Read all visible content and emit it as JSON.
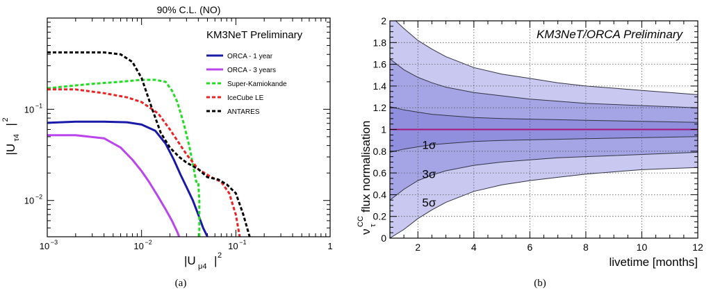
{
  "chart_data": [
    {
      "type": "line",
      "title": "90% C.L. (NO)",
      "xlabel": "|U",
      "xlabel_sub": "μ4",
      "xlabel_sup": "2",
      "ylabel": "|U",
      "ylabel_sub": "τ4",
      "ylabel_sup": "2",
      "xscale": "log",
      "yscale": "log",
      "xlim": [
        0.001,
        1
      ],
      "ylim": [
        0.004,
        1
      ],
      "x_ticks": [
        {
          "v": 0.001,
          "base": "10",
          "exp": "−3"
        },
        {
          "v": 0.01,
          "base": "10",
          "exp": "−2"
        },
        {
          "v": 0.1,
          "base": "10",
          "exp": "−1"
        },
        {
          "v": 1,
          "base": "1",
          "exp": ""
        }
      ],
      "y_ticks": [
        {
          "v": 0.01,
          "base": "10",
          "exp": "−2"
        },
        {
          "v": 0.1,
          "base": "10",
          "exp": "−1"
        }
      ],
      "legend_title": "KM3NeT Preliminary",
      "legend_position": "top-right",
      "series": [
        {
          "name": "ORCA - 1 year",
          "color": "#1a1aaa",
          "dash": "solid",
          "x": [
            0.001,
            0.002,
            0.004,
            0.007,
            0.01,
            0.014,
            0.018,
            0.022,
            0.026,
            0.03,
            0.035,
            0.04,
            0.045,
            0.05
          ],
          "y": [
            0.071,
            0.073,
            0.073,
            0.072,
            0.068,
            0.058,
            0.042,
            0.028,
            0.019,
            0.014,
            0.01,
            0.007,
            0.005,
            0.004
          ]
        },
        {
          "name": "ORCA - 3 years",
          "color": "#bb44ee",
          "dash": "solid",
          "x": [
            0.001,
            0.002,
            0.004,
            0.006,
            0.008,
            0.01,
            0.012,
            0.015,
            0.018,
            0.021,
            0.024,
            0.025
          ],
          "y": [
            0.052,
            0.052,
            0.048,
            0.038,
            0.028,
            0.021,
            0.016,
            0.011,
            0.008,
            0.006,
            0.0045,
            0.004
          ]
        },
        {
          "name": "Super-Kamiokande",
          "color": "#22dd22",
          "dash": "dashed",
          "x": [
            0.001,
            0.003,
            0.006,
            0.01,
            0.014,
            0.018,
            0.021,
            0.024,
            0.028,
            0.032,
            0.035,
            0.038,
            0.04,
            0.041,
            0.041
          ],
          "y": [
            0.17,
            0.19,
            0.2,
            0.21,
            0.21,
            0.2,
            0.16,
            0.12,
            0.07,
            0.04,
            0.025,
            0.016,
            0.016,
            0.01,
            0.004
          ]
        },
        {
          "name": "IceCube LE",
          "color": "#ee2222",
          "dash": "dashed",
          "x": [
            0.001,
            0.002,
            0.004,
            0.007,
            0.01,
            0.015,
            0.02,
            0.03,
            0.04,
            0.055,
            0.07,
            0.085,
            0.1,
            0.11
          ],
          "y": [
            0.165,
            0.165,
            0.15,
            0.135,
            0.12,
            0.09,
            0.06,
            0.032,
            0.022,
            0.018,
            0.016,
            0.012,
            0.007,
            0.004
          ]
        },
        {
          "name": "ANTARES",
          "color": "#000000",
          "dash": "dashed",
          "x": [
            0.001,
            0.002,
            0.004,
            0.006,
            0.008,
            0.01,
            0.013,
            0.016,
            0.02,
            0.025,
            0.03,
            0.04,
            0.05,
            0.065,
            0.08,
            0.1,
            0.12,
            0.14
          ],
          "y": [
            0.42,
            0.42,
            0.42,
            0.4,
            0.33,
            0.22,
            0.1,
            0.055,
            0.038,
            0.03,
            0.026,
            0.022,
            0.018,
            0.017,
            0.015,
            0.012,
            0.007,
            0.004
          ]
        }
      ],
      "caption": "(a)"
    },
    {
      "type": "area",
      "title": "KM3NeT/ORCA Preliminary",
      "xlabel": "livetime [months]",
      "ylabel_main": "ν",
      "ylabel_sub": "τ",
      "ylabel_sup": "CC",
      "ylabel_rest": " flux normalisation",
      "xlim": [
        1,
        12
      ],
      "ylim": [
        0,
        2
      ],
      "x_ticks": [
        2,
        4,
        6,
        8,
        10,
        12
      ],
      "y_ticks": [
        "0",
        "0.2",
        "0.4",
        "0.6",
        "0.8",
        "1",
        "1.2",
        "1.4",
        "1.6",
        "1.8",
        "2"
      ],
      "grid": true,
      "central_value": 1,
      "central_color": "#a01878",
      "x": [
        1,
        1.5,
        2,
        2.5,
        3,
        4,
        5,
        6,
        7,
        8,
        9,
        10,
        11,
        12
      ],
      "bands": [
        {
          "label": "5σ",
          "color": "#c8c8f0",
          "upper": [
            2.05,
            1.93,
            1.82,
            1.74,
            1.67,
            1.57,
            1.51,
            1.47,
            1.43,
            1.4,
            1.38,
            1.36,
            1.34,
            1.32
          ],
          "lower": [
            0.0,
            0.08,
            0.18,
            0.26,
            0.33,
            0.43,
            0.49,
            0.53,
            0.56,
            0.59,
            0.61,
            0.63,
            0.64,
            0.65
          ]
        },
        {
          "label": "3σ",
          "color": "#a5a5e6",
          "upper": [
            1.65,
            1.55,
            1.48,
            1.43,
            1.39,
            1.34,
            1.31,
            1.28,
            1.26,
            1.24,
            1.23,
            1.22,
            1.21,
            1.2
          ],
          "lower": [
            0.35,
            0.45,
            0.53,
            0.58,
            0.62,
            0.67,
            0.7,
            0.72,
            0.74,
            0.75,
            0.76,
            0.77,
            0.78,
            0.79
          ]
        },
        {
          "label": "1σ",
          "color": "#8f8fdd",
          "upper": [
            1.21,
            1.18,
            1.16,
            1.14,
            1.13,
            1.11,
            1.1,
            1.095,
            1.09,
            1.085,
            1.08,
            1.075,
            1.07,
            1.065
          ],
          "lower": [
            0.79,
            0.82,
            0.84,
            0.86,
            0.87,
            0.89,
            0.9,
            0.905,
            0.91,
            0.915,
            0.92,
            0.925,
            0.93,
            0.935
          ]
        }
      ],
      "band_labels": [
        {
          "text": "1σ",
          "x": 2.4,
          "y": 0.86
        },
        {
          "text": "3σ",
          "x": 2.4,
          "y": 0.59
        },
        {
          "text": "5σ",
          "x": 2.4,
          "y": 0.33
        }
      ],
      "caption": "(b)"
    }
  ]
}
